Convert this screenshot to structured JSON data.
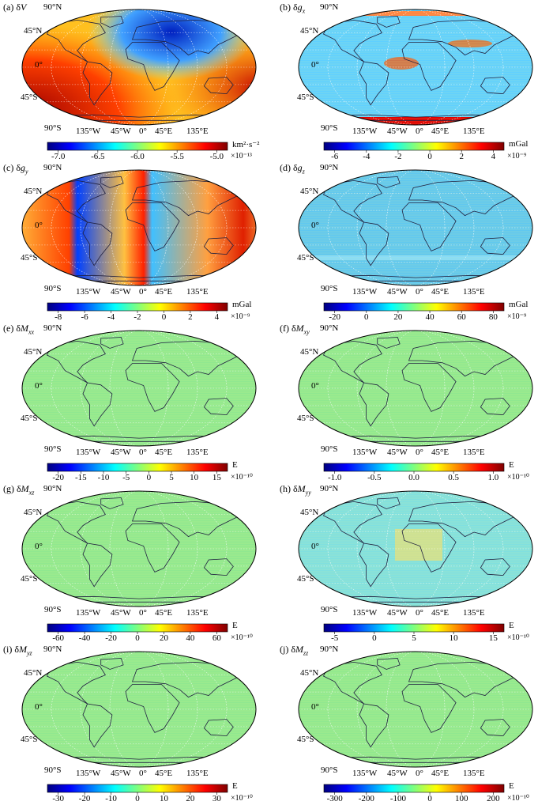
{
  "lat_labels": [
    "90°N",
    "45°N",
    "0°",
    "45°S",
    "90°S"
  ],
  "lon_labels": [
    "135°W",
    "45°W",
    "0°",
    "45°E",
    "135°E"
  ],
  "panels": [
    {
      "id": "a",
      "prefix": "(a) δ",
      "sym": "V",
      "sub": "",
      "unit": "km²·s⁻²",
      "exponent": "×10⁻¹³",
      "ticks": [
        "-7.0",
        "-6.5",
        "-6.0",
        "-5.5",
        "-5.0"
      ],
      "style": "potential"
    },
    {
      "id": "b",
      "prefix": "(b) δ",
      "sym": "g",
      "sub": "x",
      "unit": "mGal",
      "exponent": "×10⁻⁹",
      "ticks": [
        "-6",
        "-4",
        "-2",
        "0",
        "2",
        "4"
      ],
      "style": "gx"
    },
    {
      "id": "c",
      "prefix": "(c) δ",
      "sym": "g",
      "sub": "y",
      "unit": "mGal",
      "exponent": "×10⁻⁹",
      "ticks": [
        "-8",
        "-6",
        "-4",
        "-2",
        "0",
        "2",
        "4"
      ],
      "style": "gy"
    },
    {
      "id": "d",
      "prefix": "(d) δ",
      "sym": "g",
      "sub": "z",
      "unit": "mGal",
      "exponent": "×10⁻⁹",
      "ticks": [
        "-20",
        "0",
        "20",
        "40",
        "60",
        "80"
      ],
      "style": "gz"
    },
    {
      "id": "e",
      "prefix": "(e) δ",
      "sym": "M",
      "sub": "xx",
      "unit": "E",
      "exponent": "×10⁻¹⁰",
      "ticks": [
        "-20",
        "-15",
        "-10",
        "-5",
        "0",
        "5",
        "10",
        "15"
      ],
      "style": "flat"
    },
    {
      "id": "f",
      "prefix": "(f) δ",
      "sym": "M",
      "sub": "xy",
      "unit": "E",
      "exponent": "×10⁻¹⁰",
      "ticks": [
        "-1.0",
        "-0.5",
        "0.0",
        "0.5",
        "1.0"
      ],
      "style": "flat"
    },
    {
      "id": "g",
      "prefix": "(g) δ",
      "sym": "M",
      "sub": "xz",
      "unit": "E",
      "exponent": "×10⁻¹⁰",
      "ticks": [
        "-60",
        "-40",
        "-20",
        "0",
        "20",
        "40",
        "60"
      ],
      "style": "flat"
    },
    {
      "id": "h",
      "prefix": "(h) δ",
      "sym": "M",
      "sub": "yy",
      "unit": "E",
      "exponent": "×10⁻¹⁰",
      "ticks": [
        "-5",
        "0",
        "5",
        "10",
        "15"
      ],
      "style": "cyanish"
    },
    {
      "id": "i",
      "prefix": "(i) δ",
      "sym": "M",
      "sub": "yz",
      "unit": "E",
      "exponent": "×10⁻¹⁰",
      "ticks": [
        "-30",
        "-20",
        "-10",
        "0",
        "10",
        "20",
        "30"
      ],
      "style": "flat"
    },
    {
      "id": "j",
      "prefix": "(j) δ",
      "sym": "M",
      "sub": "zz",
      "unit": "E",
      "exponent": "×10⁻¹⁰",
      "ticks": [
        "-300",
        "-200",
        "-100",
        "0",
        "100",
        "200"
      ],
      "style": "flat"
    }
  ],
  "colormap": [
    "#00007f",
    "#0000ff",
    "#007fff",
    "#00ffff",
    "#7fff7f",
    "#ffff00",
    "#ff7f00",
    "#ff0000",
    "#7f0000"
  ]
}
